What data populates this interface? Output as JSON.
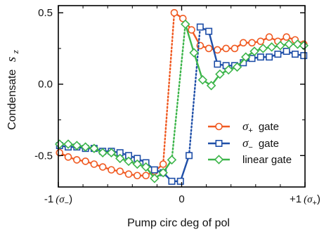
{
  "chart_data": {
    "type": "line",
    "title": "",
    "xlabel": "Pump circ deg of pol",
    "ylabel": {
      "prefix": "Condensate",
      "symbol": "s",
      "subscript": "z"
    },
    "xlim": [
      -1.0,
      1.0
    ],
    "ylim": [
      -0.72,
      0.55
    ],
    "x_ticks": [
      {
        "value": -1,
        "text": "-1",
        "paren": "(σ",
        "sub": "−",
        "close": ")"
      },
      {
        "value": 0,
        "text": "0"
      },
      {
        "value": 1,
        "text": "+1",
        "paren": "(σ",
        "sub": "+",
        "close": ")"
      }
    ],
    "x_minor_ticks": [
      -0.8,
      -0.6,
      -0.4,
      -0.2,
      0.2,
      0.4,
      0.6,
      0.8
    ],
    "y_ticks": [
      {
        "value": 0.5,
        "text": "0.5"
      },
      {
        "value": 0.0,
        "text": "0.0"
      },
      {
        "value": -0.5,
        "text": "-0.5"
      }
    ],
    "grid": false,
    "legend_position": "lower-right",
    "series": [
      {
        "name": "σ",
        "name_sub": "+",
        "name_suffix": "gate",
        "color": "#f05a22",
        "marker": "circle",
        "lower_branch": {
          "x": [
            -0.99,
            -0.92,
            -0.85,
            -0.78,
            -0.71,
            -0.64,
            -0.57,
            -0.5,
            -0.43,
            -0.36,
            -0.29,
            -0.22,
            -0.15
          ],
          "y": [
            -0.48,
            -0.51,
            -0.53,
            -0.54,
            -0.56,
            -0.58,
            -0.6,
            -0.61,
            -0.63,
            -0.64,
            -0.64,
            -0.61,
            -0.56
          ]
        },
        "jump": {
          "x": [
            -0.15,
            -0.06
          ],
          "y": [
            -0.56,
            0.5
          ]
        },
        "upper_branch": {
          "x": [
            -0.06,
            0.01,
            0.08,
            0.15,
            0.22,
            0.29,
            0.36,
            0.43,
            0.5,
            0.57,
            0.64,
            0.71,
            0.78,
            0.85,
            0.92,
            0.99
          ],
          "y": [
            0.5,
            0.46,
            0.38,
            0.27,
            0.25,
            0.24,
            0.25,
            0.25,
            0.29,
            0.29,
            0.3,
            0.33,
            0.3,
            0.33,
            0.31,
            0.28
          ]
        }
      },
      {
        "name": "σ",
        "name_sub": "−",
        "name_suffix": "gate",
        "color": "#1f4fa8",
        "marker": "square",
        "lower_branch": {
          "x": [
            -0.99,
            -0.92,
            -0.85,
            -0.78,
            -0.71,
            -0.64,
            -0.57,
            -0.5,
            -0.43,
            -0.36,
            -0.29,
            -0.22,
            -0.15,
            -0.08,
            -0.01,
            0.06
          ],
          "y": [
            -0.43,
            -0.44,
            -0.44,
            -0.45,
            -0.45,
            -0.47,
            -0.47,
            -0.48,
            -0.5,
            -0.52,
            -0.55,
            -0.6,
            -0.62,
            -0.68,
            -0.68,
            -0.5
          ]
        },
        "jump": {
          "x": [
            0.06,
            0.15
          ],
          "y": [
            -0.5,
            0.4
          ]
        },
        "upper_branch": {
          "x": [
            0.15,
            0.22,
            0.29,
            0.36,
            0.43,
            0.5,
            0.57,
            0.64,
            0.71,
            0.78,
            0.85,
            0.92,
            0.99
          ],
          "y": [
            0.4,
            0.37,
            0.14,
            0.13,
            0.13,
            0.15,
            0.18,
            0.19,
            0.19,
            0.21,
            0.23,
            0.21,
            0.2
          ]
        }
      },
      {
        "name": "linear gate",
        "color": "#3cb54a",
        "marker": "diamond",
        "lower_branch": {
          "x": [
            -0.99,
            -0.92,
            -0.85,
            -0.78,
            -0.71,
            -0.64,
            -0.57,
            -0.5,
            -0.43,
            -0.36,
            -0.29,
            -0.22,
            -0.15,
            -0.08
          ],
          "y": [
            -0.42,
            -0.42,
            -0.43,
            -0.44,
            -0.45,
            -0.48,
            -0.48,
            -0.52,
            -0.54,
            -0.56,
            -0.58,
            -0.66,
            -0.62,
            -0.53
          ]
        },
        "jump": {
          "x": [
            -0.08,
            0.03
          ],
          "y": [
            -0.53,
            0.42
          ]
        },
        "upper_branch": {
          "x": [
            0.03,
            0.1,
            0.17,
            0.24,
            0.31,
            0.38,
            0.45,
            0.52,
            0.59,
            0.66,
            0.73,
            0.8,
            0.87,
            0.94,
            0.99
          ],
          "y": [
            0.42,
            0.22,
            0.03,
            -0.01,
            0.07,
            0.1,
            0.12,
            0.19,
            0.23,
            0.25,
            0.26,
            0.27,
            0.28,
            0.28,
            0.27
          ]
        }
      }
    ]
  }
}
